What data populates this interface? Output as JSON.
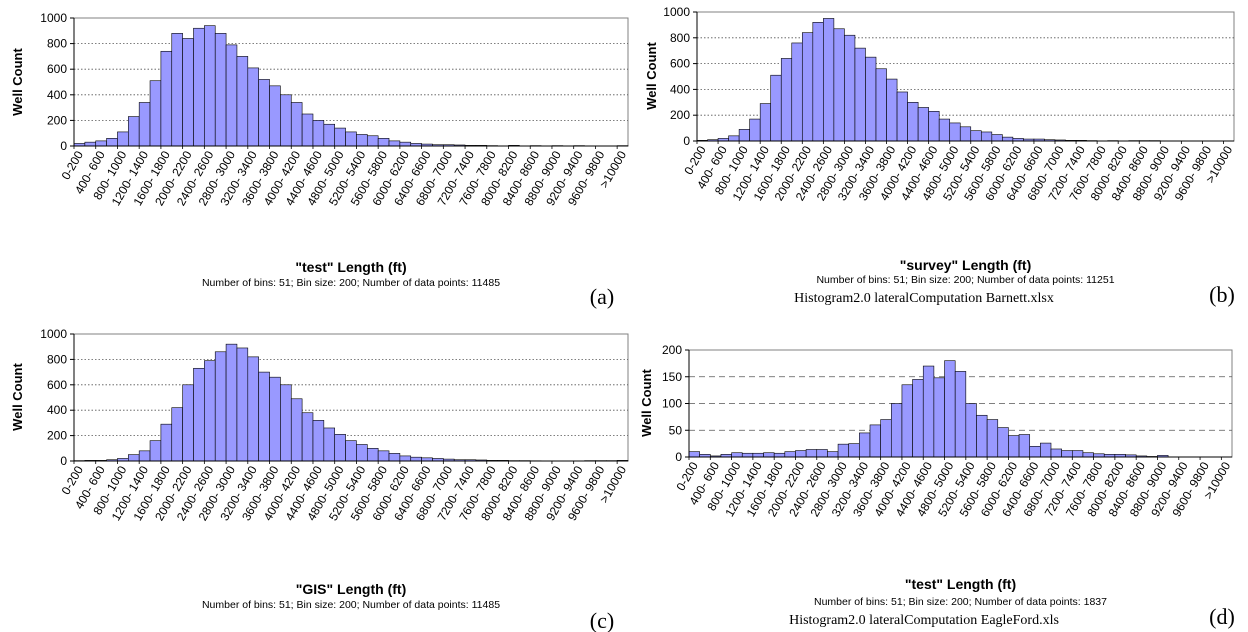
{
  "panels": [
    {
      "letter": "(a)",
      "caption": "",
      "chart_data": {
        "type": "bar",
        "title": "",
        "xlabel": "\"test\" Length (ft)",
        "ylabel": "Well Count",
        "subtitle": "Number of bins: 51; Bin size: 200; Number of data points: 11485",
        "ylim": [
          0,
          1000
        ],
        "yticks": [
          0,
          200,
          400,
          600,
          800,
          1000
        ],
        "grid": "horizontal-dotted",
        "bar_color": "#9999ff",
        "tick_labels": [
          "0-200",
          "400- 600",
          "800- 1000",
          "1200- 1400",
          "1600- 1800",
          "2000- 2200",
          "2400- 2600",
          "2800- 3000",
          "3200- 3400",
          "3600- 3800",
          "4000- 4200",
          "4400- 4600",
          "4800- 5000",
          "5200- 5400",
          "5600- 5800",
          "6000- 6200",
          "6400- 6600",
          "6800- 7000",
          "7200- 7400",
          "7600- 7800",
          "8000- 8200",
          "8400- 8600",
          "8800- 9000",
          "9200- 9400",
          "9600- 9800",
          ">10000"
        ],
        "values": [
          20,
          30,
          40,
          60,
          110,
          230,
          340,
          510,
          740,
          880,
          840,
          920,
          940,
          880,
          790,
          700,
          610,
          520,
          470,
          400,
          340,
          250,
          200,
          170,
          140,
          110,
          90,
          80,
          60,
          40,
          30,
          20,
          15,
          10,
          10,
          8,
          5,
          5,
          3,
          0,
          5,
          0,
          3,
          0,
          3,
          0,
          3,
          0,
          0,
          0,
          3
        ]
      }
    },
    {
      "letter": "(b)",
      "caption": "Histogram2.0 lateralComputation Barnett.xlsx",
      "chart_data": {
        "type": "bar",
        "title": "",
        "xlabel": "\"survey\" Length (ft)",
        "ylabel": "Well Count",
        "subtitle": "Number of bins: 51; Bin size: 200; Number of data points: 11251",
        "ylim": [
          0,
          1000
        ],
        "yticks": [
          0,
          200,
          400,
          600,
          800,
          1000
        ],
        "grid": "horizontal-dotted",
        "bar_color": "#9999ff",
        "tick_labels": [
          "0-200",
          "400- 600",
          "800- 1000",
          "1200- 1400",
          "1600- 1800",
          "2000- 2200",
          "2400- 2600",
          "2800- 3000",
          "3200- 3400",
          "3600- 3800",
          "4000- 4200",
          "4400- 4600",
          "4800- 5000",
          "5200- 5400",
          "5600- 5800",
          "6000- 6200",
          "6400- 6600",
          "6800- 7000",
          "7200- 7400",
          "7600- 7800",
          "8000- 8200",
          "8400- 8600",
          "8800- 9000",
          "9200- 9400",
          "9600- 9800",
          ">10000"
        ],
        "values": [
          5,
          10,
          20,
          40,
          90,
          170,
          290,
          510,
          640,
          760,
          840,
          920,
          950,
          870,
          820,
          720,
          650,
          560,
          480,
          380,
          300,
          260,
          230,
          170,
          140,
          110,
          80,
          70,
          50,
          30,
          20,
          15,
          15,
          10,
          8,
          5,
          5,
          3,
          0,
          3,
          0,
          3,
          3,
          3,
          0,
          0,
          0,
          0,
          0,
          0,
          0
        ]
      }
    },
    {
      "letter": "(c)",
      "caption": "",
      "chart_data": {
        "type": "bar",
        "title": "",
        "xlabel": "\"GIS\" Length (ft)",
        "ylabel": "Well Count",
        "subtitle": "Number of bins: 51; Bin size: 200; Number of data points: 11485",
        "ylim": [
          0,
          1000
        ],
        "yticks": [
          0,
          200,
          400,
          600,
          800,
          1000
        ],
        "grid": "horizontal-dotted",
        "bar_color": "#9999ff",
        "tick_labels": [
          "0-200",
          "400- 600",
          "800- 1000",
          "1200- 1400",
          "1600- 1800",
          "2000- 2200",
          "2400- 2600",
          "2800- 3000",
          "3200- 3400",
          "3600- 3800",
          "4000- 4200",
          "4400- 4600",
          "4800- 5000",
          "5200- 5400",
          "5600- 5800",
          "6000- 6200",
          "6400- 6600",
          "6800- 7000",
          "7200- 7400",
          "7600- 7800",
          "8000- 8200",
          "8400- 8600",
          "8800- 9000",
          "9200- 9400",
          "9600- 9800",
          ">10000"
        ],
        "values": [
          3,
          5,
          5,
          10,
          20,
          50,
          80,
          160,
          290,
          420,
          600,
          730,
          790,
          860,
          920,
          890,
          820,
          700,
          660,
          600,
          490,
          380,
          320,
          260,
          210,
          160,
          130,
          100,
          80,
          60,
          40,
          30,
          25,
          20,
          15,
          10,
          10,
          8,
          5,
          5,
          3,
          3,
          2,
          0,
          0,
          0,
          0,
          3,
          3,
          3,
          5
        ]
      }
    },
    {
      "letter": "(d)",
      "caption": "Histogram2.0 lateralComputation EagleFord.xls",
      "chart_data": {
        "type": "bar",
        "title": "",
        "xlabel": "\"test\" Length (ft)",
        "ylabel": "Well Count",
        "subtitle": "Number of bins: 51; Bin size: 200; Number of data points: 1837",
        "ylim": [
          0,
          200
        ],
        "yticks": [
          0,
          50,
          100,
          150,
          200
        ],
        "grid": "horizontal-dashed",
        "bar_color": "#9999ff",
        "tick_labels": [
          "0-200",
          "400- 600",
          "800- 1000",
          "1200- 1400",
          "1600- 1800",
          "2000- 2200",
          "2400- 2600",
          "2800- 3000",
          "3200- 3400",
          "3600- 3800",
          "4000- 4200",
          "4400- 4600",
          "4800- 5000",
          "5200- 5400",
          "5600- 5800",
          "6000- 6200",
          "6400- 6600",
          "6800- 7000",
          "7200- 7400",
          "7600- 7800",
          "8000- 8200",
          "8400- 8600",
          "8800- 9000",
          "9200- 9400",
          "9600- 9800",
          ">10000"
        ],
        "values": [
          10,
          5,
          2,
          5,
          8,
          7,
          7,
          8,
          7,
          10,
          12,
          14,
          14,
          10,
          24,
          25,
          45,
          60,
          70,
          100,
          135,
          145,
          170,
          148,
          180,
          160,
          100,
          78,
          70,
          55,
          40,
          42,
          20,
          26,
          15,
          12,
          12,
          8,
          6,
          5,
          5,
          4,
          2,
          1,
          3,
          0,
          0,
          0,
          0,
          0,
          0
        ]
      }
    }
  ]
}
